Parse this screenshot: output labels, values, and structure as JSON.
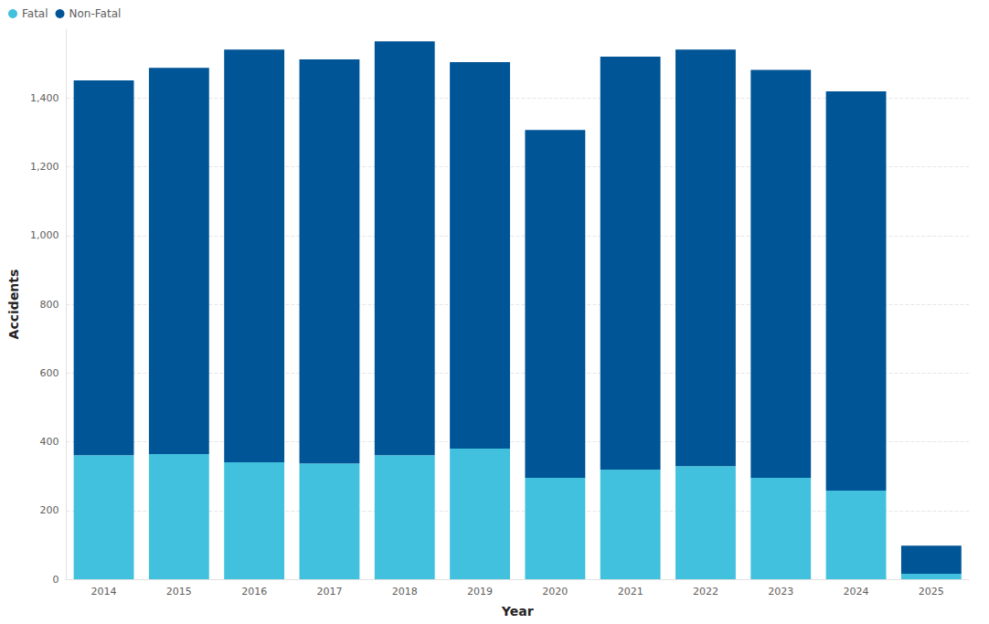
{
  "chart_data": {
    "type": "bar",
    "stacked": true,
    "legend": "top-left",
    "grid": true,
    "x_label": "Year",
    "y_label": "Accidents",
    "categories": [
      "2014",
      "2015",
      "2016",
      "2017",
      "2018",
      "2019",
      "2020",
      "2021",
      "2022",
      "2023",
      "2024",
      "2025"
    ],
    "series": [
      {
        "name": "Fatal",
        "color": "#41c1dd",
        "values": [
          361,
          364,
          340,
          337,
          361,
          380,
          295,
          319,
          329,
          295,
          258,
          16
        ]
      },
      {
        "name": "Non-Fatal",
        "color": "#005596",
        "values": [
          1090,
          1124,
          1201,
          1175,
          1204,
          1124,
          1012,
          1201,
          1212,
          1187,
          1161,
          82
        ]
      }
    ],
    "ylim": [
      0,
      1600
    ],
    "yticks": [
      0,
      200,
      400,
      600,
      800,
      {
        "value": 1000,
        "label": "1,000"
      },
      {
        "value": 1200,
        "label": "1,200"
      },
      {
        "value": 1400,
        "label": "1,400"
      }
    ]
  }
}
